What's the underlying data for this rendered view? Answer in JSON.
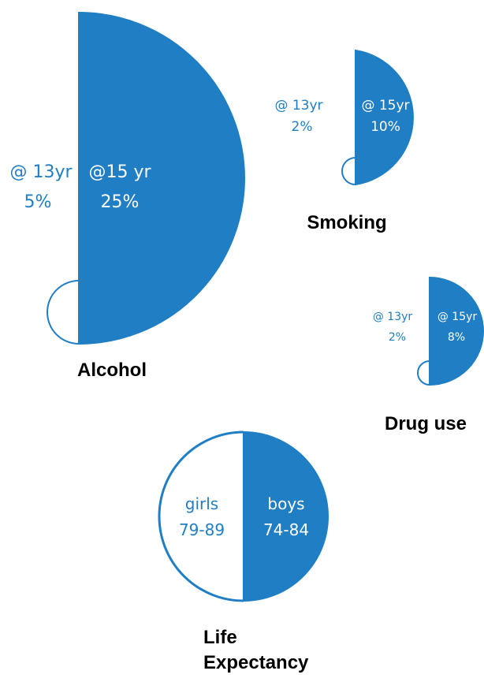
{
  "palette": {
    "fill": "#1f7ec4",
    "stroke": "#1f7ec4",
    "text_blue": "#1f7ec4",
    "title": "#000000"
  },
  "chart_data": [
    {
      "type": "semicircle-pair",
      "title": "Alcohol",
      "series": [
        {
          "name": "@ 13yr",
          "value": 5,
          "label_line1": "@ 13yr",
          "label_line2": "5%",
          "style": "outline"
        },
        {
          "name": "@15 yr",
          "value": 25,
          "label_line1": "@15 yr",
          "label_line2": "25%",
          "style": "filled"
        }
      ],
      "unit": "%"
    },
    {
      "type": "semicircle-pair",
      "title": "Smoking",
      "series": [
        {
          "name": "@ 13yr",
          "value": 2,
          "label_line1": "@ 13yr",
          "label_line2": "2%",
          "style": "outline"
        },
        {
          "name": "@ 15yr",
          "value": 10,
          "label_line1": "@ 15yr",
          "label_line2": "10%",
          "style": "filled"
        }
      ],
      "unit": "%"
    },
    {
      "type": "semicircle-pair",
      "title": "Drug use",
      "series": [
        {
          "name": "@ 13yr",
          "value": 2,
          "label_line1": "@ 13yr",
          "label_line2": "2%",
          "style": "outline"
        },
        {
          "name": "@ 15yr",
          "value": 8,
          "label_line1": "@ 15yr",
          "label_line2": "8%",
          "style": "filled"
        }
      ],
      "unit": "%"
    },
    {
      "type": "semicircle-pair",
      "title_line1": "Life",
      "title_line2": "Expectancy",
      "series": [
        {
          "name": "girls",
          "value": "79-89",
          "label_line1": "girls",
          "label_line2": "79-89",
          "style": "outline"
        },
        {
          "name": "boys",
          "value": "74-84",
          "label_line1": "boys",
          "label_line2": "74-84",
          "style": "filled"
        }
      ]
    }
  ]
}
